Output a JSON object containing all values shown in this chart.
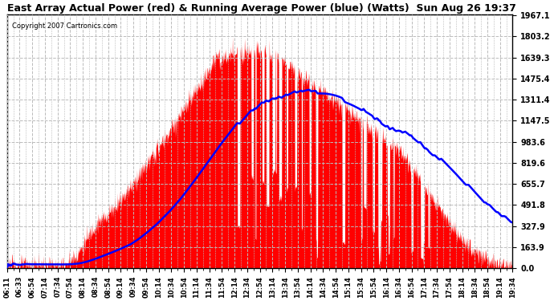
{
  "title": "East Array Actual Power (red) & Running Average Power (blue) (Watts)  Sun Aug 26 19:37",
  "copyright": "Copyright 2007 Cartronics.com",
  "plot_bg_color": "#ffffff",
  "fig_bg_color": "#ffffff",
  "yticks": [
    0.0,
    163.9,
    327.9,
    491.8,
    655.7,
    819.6,
    983.6,
    1147.5,
    1311.4,
    1475.4,
    1639.3,
    1803.2,
    1967.1
  ],
  "ymax": 1967.1,
  "xtick_labels": [
    "06:11",
    "06:33",
    "06:54",
    "07:14",
    "07:34",
    "07:54",
    "08:14",
    "08:34",
    "08:54",
    "09:14",
    "09:34",
    "09:54",
    "10:14",
    "10:34",
    "10:54",
    "11:14",
    "11:34",
    "11:54",
    "12:14",
    "12:34",
    "12:54",
    "13:14",
    "13:34",
    "13:54",
    "14:14",
    "14:34",
    "14:54",
    "15:14",
    "15:34",
    "15:54",
    "16:14",
    "16:34",
    "16:54",
    "17:14",
    "17:34",
    "17:54",
    "18:14",
    "18:34",
    "18:54",
    "19:14",
    "19:34"
  ],
  "red_color": "#ff0000",
  "blue_color": "#0000ff",
  "grid_color": "#bbbbbb",
  "title_fontsize": 9,
  "copyright_fontsize": 6,
  "ytick_fontsize": 7,
  "xtick_fontsize": 6
}
